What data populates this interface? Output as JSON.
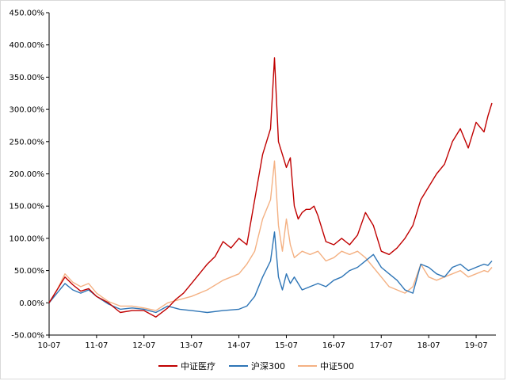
{
  "chart_data": {
    "type": "line",
    "title": "",
    "xlabel": "",
    "ylabel": "",
    "ylim": [
      -50,
      450
    ],
    "yticks": [
      "-50.00%",
      "0.00%",
      "50.00%",
      "100.00%",
      "150.00%",
      "200.00%",
      "250.00%",
      "300.00%",
      "350.00%",
      "400.00%",
      "450.00%"
    ],
    "xticks": [
      "10-07",
      "11-07",
      "12-07",
      "13-07",
      "14-07",
      "15-07",
      "16-07",
      "17-07",
      "18-07",
      "19-07"
    ],
    "grid": false,
    "legend_position": "bottom",
    "x_unit_note": "x values are months since 2010-07",
    "series": [
      {
        "name": "中证医疗",
        "color": "#c00000",
        "x": [
          0,
          2,
          4,
          6,
          8,
          10,
          12,
          15,
          18,
          21,
          24,
          27,
          30,
          32,
          34,
          36,
          40,
          42,
          44,
          46,
          48,
          50,
          52,
          54,
          56,
          57,
          58,
          59,
          60,
          61,
          62,
          63,
          64,
          65,
          66,
          67,
          68,
          69,
          70,
          72,
          74,
          76,
          78,
          80,
          82,
          84,
          86,
          88,
          90,
          92,
          93,
          94,
          96,
          98,
          100,
          102,
          104,
          106,
          108,
          110,
          111,
          112
        ],
        "y": [
          0,
          20,
          40,
          28,
          18,
          22,
          10,
          0,
          -15,
          -12,
          -12,
          -22,
          -8,
          5,
          15,
          30,
          60,
          72,
          95,
          85,
          100,
          90,
          160,
          230,
          270,
          380,
          250,
          230,
          210,
          225,
          150,
          130,
          140,
          145,
          145,
          150,
          135,
          115,
          95,
          90,
          100,
          90,
          105,
          140,
          120,
          80,
          75,
          85,
          100,
          120,
          140,
          160,
          180,
          200,
          215,
          250,
          270,
          240,
          280,
          265,
          290,
          310
        ]
      },
      {
        "name": "沪深300",
        "color": "#2e75b6",
        "x": [
          0,
          2,
          4,
          6,
          8,
          10,
          12,
          15,
          18,
          21,
          24,
          27,
          30,
          33,
          36,
          40,
          44,
          48,
          50,
          52,
          54,
          56,
          57,
          58,
          59,
          60,
          61,
          62,
          64,
          66,
          68,
          70,
          72,
          74,
          76,
          78,
          80,
          82,
          84,
          86,
          88,
          90,
          92,
          94,
          96,
          98,
          100,
          102,
          104,
          106,
          108,
          110,
          111,
          112
        ],
        "y": [
          0,
          15,
          30,
          20,
          15,
          20,
          10,
          -2,
          -10,
          -8,
          -10,
          -15,
          -5,
          -10,
          -12,
          -15,
          -12,
          -10,
          -5,
          10,
          40,
          65,
          110,
          40,
          20,
          45,
          30,
          40,
          20,
          25,
          30,
          25,
          35,
          40,
          50,
          55,
          65,
          75,
          55,
          45,
          35,
          20,
          15,
          60,
          55,
          45,
          40,
          55,
          60,
          50,
          55,
          60,
          58,
          65
        ]
      },
      {
        "name": "中证500",
        "color": "#f4b183",
        "x": [
          0,
          2,
          4,
          6,
          8,
          10,
          12,
          15,
          18,
          21,
          24,
          27,
          30,
          33,
          36,
          40,
          44,
          48,
          50,
          52,
          54,
          56,
          57,
          58,
          59,
          60,
          61,
          62,
          64,
          66,
          68,
          70,
          72,
          74,
          76,
          78,
          80,
          82,
          84,
          86,
          88,
          90,
          92,
          94,
          96,
          98,
          100,
          102,
          104,
          106,
          108,
          110,
          111,
          112
        ],
        "y": [
          0,
          20,
          45,
          32,
          25,
          30,
          15,
          2,
          -5,
          -5,
          -8,
          -12,
          0,
          5,
          10,
          20,
          35,
          45,
          60,
          80,
          130,
          160,
          220,
          120,
          80,
          130,
          90,
          70,
          80,
          75,
          80,
          65,
          70,
          80,
          75,
          80,
          70,
          55,
          40,
          25,
          20,
          15,
          25,
          60,
          40,
          35,
          40,
          45,
          50,
          40,
          45,
          50,
          48,
          55
        ]
      }
    ]
  }
}
